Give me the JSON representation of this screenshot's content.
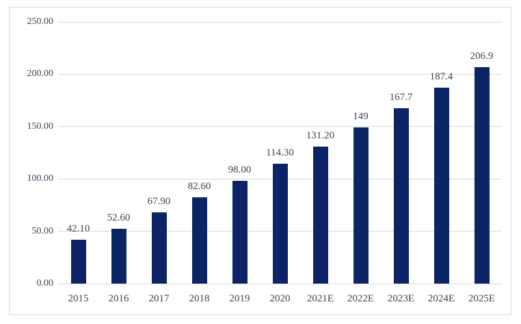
{
  "chart_data": {
    "type": "bar",
    "title": "",
    "xlabel": "",
    "ylabel": "",
    "categories": [
      "2015",
      "2016",
      "2017",
      "2018",
      "2019",
      "2020",
      "2021E",
      "2022E",
      "2023E",
      "2024E",
      "2025E"
    ],
    "values": [
      42.1,
      52.6,
      67.9,
      82.6,
      98.0,
      114.3,
      131.2,
      149,
      167.7,
      187.4,
      206.9
    ],
    "value_labels": [
      "42.10",
      "52.60",
      "67.90",
      "82.60",
      "98.00",
      "114.30",
      "131.20",
      "149",
      "167.7",
      "187.4",
      "206.9"
    ],
    "ylim": [
      0,
      250
    ],
    "ytick_interval": 50,
    "ytick_labels": [
      "0.00",
      "50.00",
      "100.00",
      "150.00",
      "200.00",
      "250.00"
    ],
    "grid": true,
    "legend": false,
    "colors": {
      "bar": "#0b2465",
      "gridline": "#d9d9d9",
      "frame_border": "#d9d9d9",
      "axis_line": "#d9d9d9",
      "text": "#3c4254"
    }
  }
}
